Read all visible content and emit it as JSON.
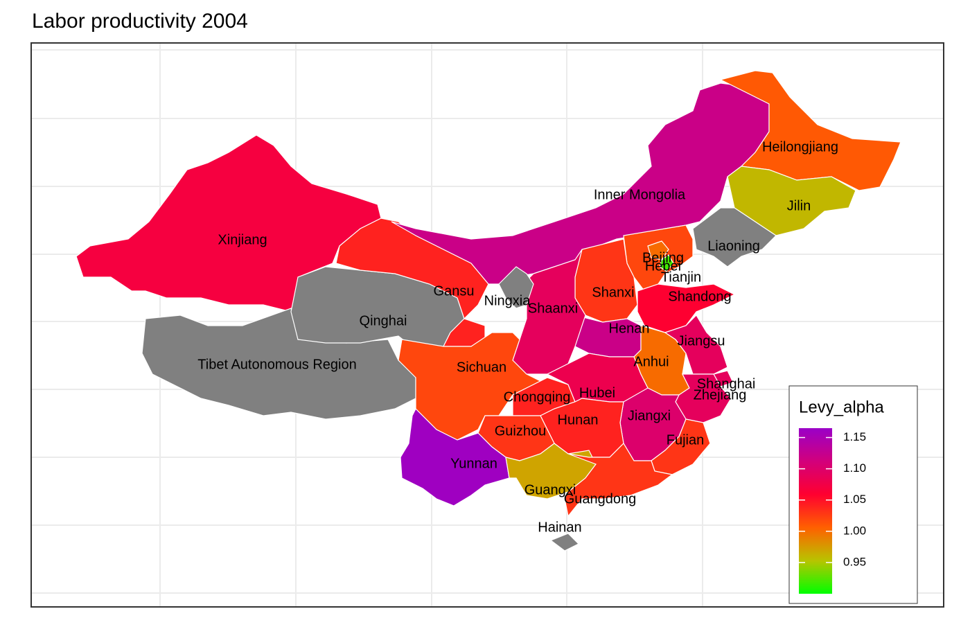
{
  "chart_data": {
    "type": "choropleth",
    "title": "Labor productivity 2004",
    "legend_title": "Levy_alpha",
    "colorlim": [
      0.9,
      1.165
    ],
    "colorticks": [
      0.95,
      {
        "value": 1,
        "label": "1.00"
      },
      1.05,
      {
        "value": 1.1,
        "label": "1.10"
      },
      1.15
    ],
    "colors": [
      "#00ff00",
      "#b8c400",
      "#ff6000",
      "#ff0030",
      "#d2007c",
      "#9a00c8"
    ],
    "na_color": "#808080",
    "regions": [
      {
        "name": "Xinjiang",
        "value": 1.07
      },
      {
        "name": "Tibet Autonomous Region",
        "value": null
      },
      {
        "name": "Qinghai",
        "value": null
      },
      {
        "name": "Gansu",
        "value": 1.04
      },
      {
        "name": "Inner Mongolia",
        "value": 1.12
      },
      {
        "name": "Heilongjiang",
        "value": 1.01
      },
      {
        "name": "Jilin",
        "value": 0.96
      },
      {
        "name": "Liaoning",
        "value": null
      },
      {
        "name": "Hebei",
        "value": 1.02
      },
      {
        "name": "Beijing",
        "value": 1.0
      },
      {
        "name": "Tianjin",
        "value": 0.92
      },
      {
        "name": "Shanxi",
        "value": 1.03
      },
      {
        "name": "Shandong",
        "value": 1.06
      },
      {
        "name": "Henan",
        "value": 1.12
      },
      {
        "name": "Shaanxi",
        "value": 1.09
      },
      {
        "name": "Ningxia",
        "value": null
      },
      {
        "name": "Sichuan",
        "value": 1.02
      },
      {
        "name": "Chongqing",
        "value": 1.04
      },
      {
        "name": "Hubei",
        "value": 1.08
      },
      {
        "name": "Anhui",
        "value": 1.0
      },
      {
        "name": "Jiangsu",
        "value": 1.09
      },
      {
        "name": "Shanghai",
        "value": 1.09
      },
      {
        "name": "Zhejiang",
        "value": 1.09
      },
      {
        "name": "Jiangxi",
        "value": 1.1
      },
      {
        "name": "Fujian",
        "value": 1.03
      },
      {
        "name": "Hunan",
        "value": 1.04
      },
      {
        "name": "Guizhou",
        "value": 1.03
      },
      {
        "name": "Yunnan",
        "value": 1.16
      },
      {
        "name": "Guangxi",
        "value": 0.97
      },
      {
        "name": "Guangdong",
        "value": 1.03
      },
      {
        "name": "Hainan",
        "value": null
      }
    ]
  }
}
